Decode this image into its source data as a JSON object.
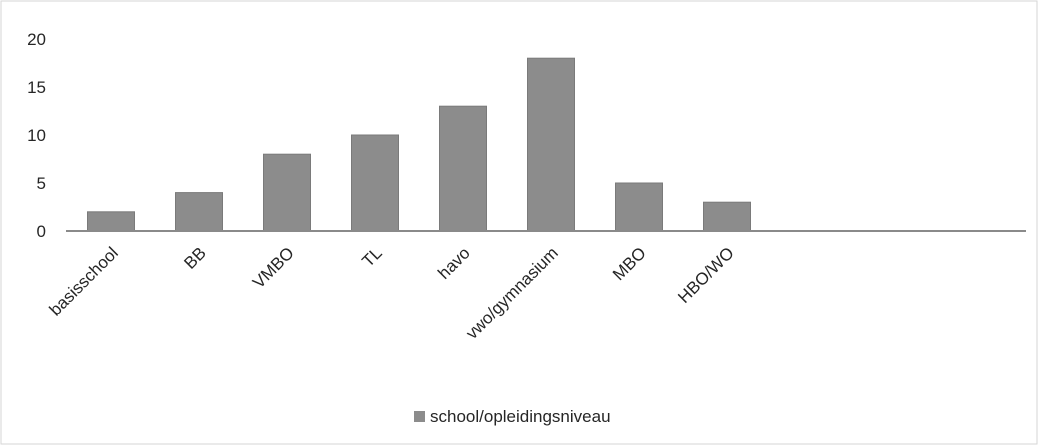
{
  "chart_data": {
    "type": "bar",
    "categories": [
      "basisschool",
      "BB",
      "VMBO",
      "TL",
      "havo",
      "vwo/gymnasium",
      "MBO",
      "HBO/WO"
    ],
    "series": [
      {
        "name": "school/opleidingsniveau",
        "values": [
          2,
          4,
          8,
          10,
          13,
          18,
          5,
          3
        ]
      }
    ],
    "ylim": [
      0,
      20
    ],
    "yticks": [
      "0",
      "5",
      "10",
      "15",
      "20"
    ],
    "grid": false,
    "legend": "bottom",
    "title": "",
    "xlabel": "",
    "ylabel": "",
    "colors": {
      "bar": "#8c8c8c",
      "bar_edge": "#7a7a7a",
      "axis": "#8a8a8a",
      "frame": "#d6d6d6"
    }
  }
}
